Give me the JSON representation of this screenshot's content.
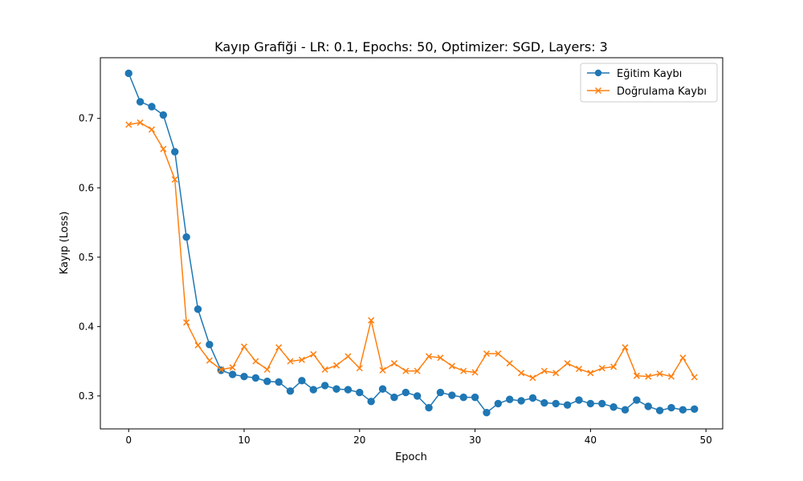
{
  "chart_data": {
    "type": "line",
    "title": "Kayıp Grafiği - LR: 0.1, Epochs: 50, Optimizer: SGD, Layers: 3",
    "xlabel": "Epoch",
    "ylabel": "Kayıp (Loss)",
    "xlim": [
      -2.45,
      51.45
    ],
    "ylim": [
      0.2525,
      0.7875
    ],
    "xticks": [
      0,
      10,
      20,
      30,
      40,
      50
    ],
    "yticks": [
      0.3,
      0.4,
      0.5,
      0.6,
      0.7
    ],
    "grid": false,
    "legend_position": "upper right",
    "x": [
      0,
      1,
      2,
      3,
      4,
      5,
      6,
      7,
      8,
      9,
      10,
      11,
      12,
      13,
      14,
      15,
      16,
      17,
      18,
      19,
      20,
      21,
      22,
      23,
      24,
      25,
      26,
      27,
      28,
      29,
      30,
      31,
      32,
      33,
      34,
      35,
      36,
      37,
      38,
      39,
      40,
      41,
      42,
      43,
      44,
      45,
      46,
      47,
      48,
      49
    ],
    "series": [
      {
        "name": "Eğitim Kaybı",
        "color": "#1f77b4",
        "marker": "circle",
        "values": [
          0.765,
          0.724,
          0.717,
          0.705,
          0.652,
          0.529,
          0.425,
          0.374,
          0.337,
          0.331,
          0.328,
          0.326,
          0.321,
          0.32,
          0.307,
          0.322,
          0.309,
          0.315,
          0.31,
          0.309,
          0.305,
          0.292,
          0.31,
          0.298,
          0.305,
          0.3,
          0.283,
          0.305,
          0.301,
          0.298,
          0.298,
          0.276,
          0.289,
          0.295,
          0.293,
          0.297,
          0.29,
          0.289,
          0.287,
          0.294,
          0.289,
          0.289,
          0.284,
          0.28,
          0.294,
          0.285,
          0.279,
          0.283,
          0.28,
          0.281
        ]
      },
      {
        "name": "Doğrulama Kaybı",
        "color": "#ff7f0e",
        "marker": "x",
        "values": [
          0.691,
          0.694,
          0.684,
          0.656,
          0.612,
          0.406,
          0.373,
          0.351,
          0.338,
          0.341,
          0.371,
          0.35,
          0.338,
          0.37,
          0.35,
          0.352,
          0.36,
          0.338,
          0.344,
          0.357,
          0.34,
          0.409,
          0.337,
          0.347,
          0.336,
          0.336,
          0.357,
          0.355,
          0.343,
          0.336,
          0.334,
          0.361,
          0.361,
          0.347,
          0.333,
          0.326,
          0.336,
          0.333,
          0.347,
          0.339,
          0.333,
          0.34,
          0.342,
          0.37,
          0.329,
          0.328,
          0.332,
          0.328,
          0.355,
          0.327
        ]
      }
    ]
  }
}
